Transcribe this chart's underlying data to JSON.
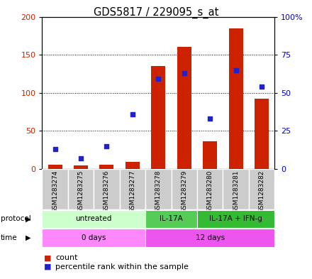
{
  "title": "GDS5817 / 229095_s_at",
  "samples": [
    "GSM1283274",
    "GSM1283275",
    "GSM1283276",
    "GSM1283277",
    "GSM1283278",
    "GSM1283279",
    "GSM1283280",
    "GSM1283281",
    "GSM1283282"
  ],
  "counts": [
    5,
    4,
    5,
    9,
    135,
    160,
    36,
    185,
    92
  ],
  "percentile_ranks": [
    13,
    7,
    15,
    36,
    59,
    63,
    33,
    65,
    54
  ],
  "protocol_groups": [
    {
      "label": "untreated",
      "start": 0,
      "end": 4,
      "color": "#ccffcc"
    },
    {
      "label": "IL-17A",
      "start": 4,
      "end": 6,
      "color": "#55cc55"
    },
    {
      "label": "IL-17A + IFN-g",
      "start": 6,
      "end": 9,
      "color": "#33bb33"
    }
  ],
  "time_groups": [
    {
      "label": "0 days",
      "start": 0,
      "end": 4,
      "color": "#ff88ff"
    },
    {
      "label": "12 days",
      "start": 4,
      "end": 9,
      "color": "#ee55ee"
    }
  ],
  "left_ylim": [
    0,
    200
  ],
  "right_ylim": [
    0,
    100
  ],
  "left_yticks": [
    0,
    50,
    100,
    150,
    200
  ],
  "right_yticks": [
    0,
    25,
    50,
    75,
    100
  ],
  "right_yticklabels": [
    "0",
    "25",
    "50",
    "75",
    "100%"
  ],
  "bar_color": "#cc2200",
  "dot_color": "#2222cc",
  "bar_width": 0.55,
  "grid_color": "#000000",
  "sample_box_color": "#cccccc",
  "legend_count_label": "count",
  "legend_pct_label": "percentile rank within the sample"
}
